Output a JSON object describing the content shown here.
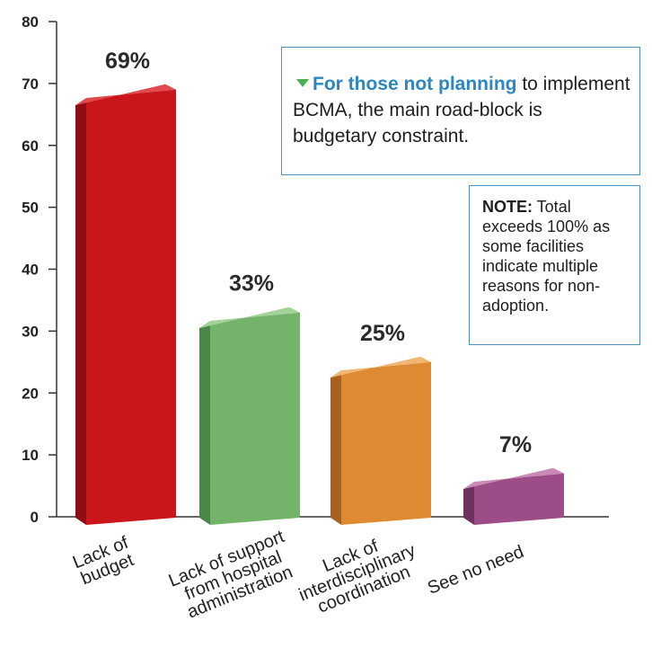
{
  "chart_data": {
    "type": "bar",
    "categories": [
      [
        "Lack of",
        "budget"
      ],
      [
        "Lack of support",
        "from hospital",
        "administration"
      ],
      [
        "Lack of",
        "interdisciplinary",
        "coordination"
      ],
      [
        "See no need"
      ]
    ],
    "values": [
      69,
      33,
      25,
      7
    ],
    "value_labels": [
      "69%",
      "33%",
      "25%",
      "7%"
    ],
    "yticks": [
      "0",
      "10",
      "20",
      "30",
      "40",
      "50",
      "60",
      "70",
      "80"
    ],
    "ylim": [
      0,
      80
    ],
    "grid": false,
    "legend": "none",
    "bar_colors": [
      {
        "front": "#c8161c",
        "side": "#8f0d12",
        "top": "#e04a4f"
      },
      {
        "front": "#74b36a",
        "side": "#4d8748",
        "top": "#a3d398"
      },
      {
        "front": "#de8a33",
        "side": "#a8621f",
        "top": "#f2b673"
      },
      {
        "front": "#9c4c86",
        "side": "#6f325f",
        "top": "#c98bb5"
      }
    ]
  },
  "callout": {
    "highlight": "For those not planning",
    "text": " to implement BCMA, the main road-block is budgetary constraint."
  },
  "note": {
    "label": "NOTE:",
    "text": " Total exceeds 100% as some facilities indicate multiple reasons for non-adoption."
  }
}
